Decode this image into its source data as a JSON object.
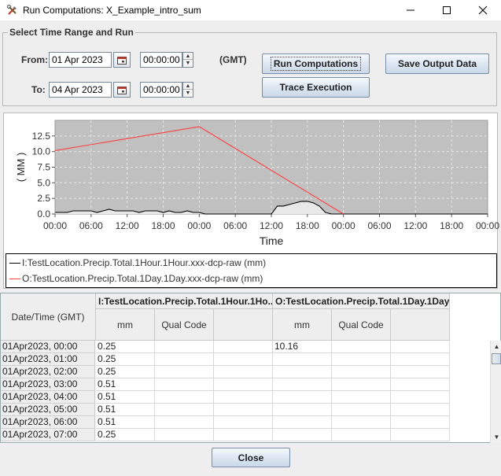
{
  "window": {
    "title": "Run Computations: X_Example_intro_sum",
    "icon": "tools-icon"
  },
  "controls": {
    "group_title": "Select Time Range and Run",
    "from_label": "From:",
    "from_date": "01 Apr 2023",
    "from_time": "00:00:00",
    "to_label": "To:",
    "to_date": "04 Apr 2023",
    "to_time": "00:00:00",
    "timezone": "(GMT)",
    "run_label": "Run Computations",
    "trace_label": "Trace Execution",
    "save_label": "Save Output Data"
  },
  "chart_data": {
    "type": "line",
    "ylabel": "( MM )",
    "xlabel": "Time",
    "ylim": [
      0,
      15
    ],
    "yticks": [
      "0.0",
      "2.5",
      "5.0",
      "7.5",
      "10.0",
      "12.5"
    ],
    "xticks": [
      "00:00",
      "06:00",
      "12:00",
      "18:00",
      "00:00",
      "06:00",
      "12:00",
      "18:00",
      "00:00",
      "06:00",
      "12:00",
      "18:00",
      "00:00"
    ],
    "x_hours_range": [
      0,
      72
    ],
    "grid": true,
    "series": [
      {
        "name": "I:TestLocation.Precip.Total.1Hour.1Hour.xxx-dcp-raw (mm)",
        "color": "#000000",
        "filled": true,
        "x": [
          0,
          1,
          2,
          3,
          4,
          5,
          6,
          7,
          8,
          9,
          10,
          11,
          12,
          13,
          14,
          15,
          16,
          17,
          18,
          19,
          20,
          21,
          22,
          23,
          24,
          25,
          26,
          36,
          37,
          38,
          39,
          40,
          41,
          42,
          43,
          44,
          45,
          46,
          47,
          48,
          72
        ],
        "y": [
          0.25,
          0.25,
          0.25,
          0.51,
          0.51,
          0.51,
          0.51,
          0.25,
          0.51,
          0.76,
          0.51,
          0.51,
          0.51,
          0.51,
          0.25,
          0.51,
          0.51,
          0.51,
          0.25,
          0.51,
          0.25,
          0.25,
          0.51,
          0.25,
          0.25,
          0.0,
          0.0,
          0.0,
          1.27,
          1.27,
          1.52,
          1.78,
          2.03,
          2.03,
          1.78,
          1.27,
          0.25,
          0.0,
          0.0,
          0.0,
          0.0
        ]
      },
      {
        "name": "O:TestLocation.Precip.Total.1Day.1Day.xxx-dcp-raw (mm)",
        "color": "#ff4040",
        "filled": false,
        "x": [
          0,
          24,
          48
        ],
        "y": [
          10.16,
          14.0,
          0.0
        ]
      }
    ]
  },
  "table": {
    "rowhead_title": "Date/Time (GMT)",
    "groups": [
      {
        "title": "I:TestLocation.Precip.Total.1Hour.1Ho...",
        "sub": [
          "mm",
          "Qual Code",
          ""
        ]
      },
      {
        "title": "O:TestLocation.Precip.Total.1Day.1Day...",
        "sub": [
          "mm",
          "Qual Code",
          ""
        ]
      }
    ],
    "rows": [
      {
        "time": "01Apr2023, 00:00",
        "v1": "0.25",
        "q1": "",
        "e1": "",
        "v2": "10.16",
        "q2": "",
        "e2": ""
      },
      {
        "time": "01Apr2023, 01:00",
        "v1": "0.25",
        "q1": "",
        "e1": "",
        "v2": "",
        "q2": "",
        "e2": ""
      },
      {
        "time": "01Apr2023, 02:00",
        "v1": "0.25",
        "q1": "",
        "e1": "",
        "v2": "",
        "q2": "",
        "e2": ""
      },
      {
        "time": "01Apr2023, 03:00",
        "v1": "0.51",
        "q1": "",
        "e1": "",
        "v2": "",
        "q2": "",
        "e2": ""
      },
      {
        "time": "01Apr2023, 04:00",
        "v1": "0.51",
        "q1": "",
        "e1": "",
        "v2": "",
        "q2": "",
        "e2": ""
      },
      {
        "time": "01Apr2023, 05:00",
        "v1": "0.51",
        "q1": "",
        "e1": "",
        "v2": "",
        "q2": "",
        "e2": ""
      },
      {
        "time": "01Apr2023, 06:00",
        "v1": "0.51",
        "q1": "",
        "e1": "",
        "v2": "",
        "q2": "",
        "e2": ""
      },
      {
        "time": "01Apr2023, 07:00",
        "v1": "0.25",
        "q1": "",
        "e1": "",
        "v2": "",
        "q2": "",
        "e2": ""
      }
    ]
  },
  "footer": {
    "close_label": "Close"
  }
}
